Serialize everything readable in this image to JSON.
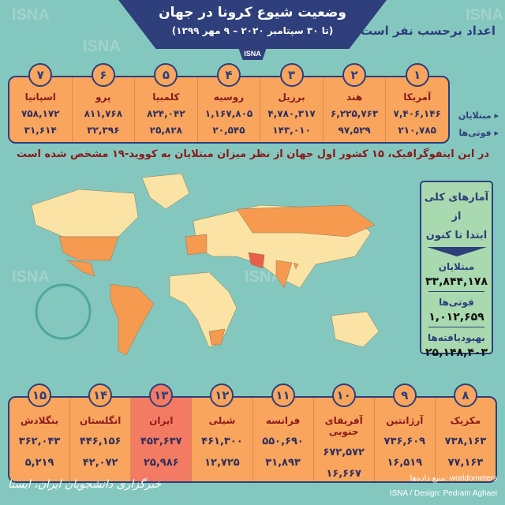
{
  "header": {
    "title": "وضعیت شیوع کرونا در جهان",
    "subtitle": "(تا ۳۰ سپتامبر ۲۰۲۰ – ۹ مهر ۱۳۹۹)",
    "tab": "ISNA",
    "units": "اعداد برحسب نفر است"
  },
  "watermark": "ISNA",
  "row_labels": {
    "cases": "مبتلایان",
    "deaths": "فوتی‌ها"
  },
  "top_countries": [
    {
      "rank": "۱",
      "name": "آمریکا",
      "cases": "۷,۴۰۶,۱۴۶",
      "deaths": "۲۱۰,۷۸۵"
    },
    {
      "rank": "۲",
      "name": "هند",
      "cases": "۶,۲۲۵,۷۶۳",
      "deaths": "۹۷,۵۲۹"
    },
    {
      "rank": "۳",
      "name": "برزیل",
      "cases": "۴,۷۸۰,۳۱۷",
      "deaths": "۱۴۳,۰۱۰"
    },
    {
      "rank": "۴",
      "name": "روسیه",
      "cases": "۱,۱۶۷,۸۰۵",
      "deaths": "۲۰,۵۴۵"
    },
    {
      "rank": "۵",
      "name": "کلمبیا",
      "cases": "۸۲۴,۰۴۲",
      "deaths": "۲۵,۸۲۸"
    },
    {
      "rank": "۶",
      "name": "پرو",
      "cases": "۸۱۱,۷۶۸",
      "deaths": "۳۲,۳۹۶"
    },
    {
      "rank": "۷",
      "name": "اسپانیا",
      "cases": "۷۵۸,۱۷۲",
      "deaths": "۳۱,۶۱۴"
    }
  ],
  "bottom_countries": [
    {
      "rank": "۸",
      "name": "مکزیک",
      "cases": "۷۳۸,۱۶۳",
      "deaths": "۷۷,۱۶۳"
    },
    {
      "rank": "۹",
      "name": "آرژانتین",
      "cases": "۷۳۶,۶۰۹",
      "deaths": "۱۶,۵۱۹"
    },
    {
      "rank": "۱۰",
      "name": "آفریقای جنوبی",
      "cases": "۶۷۲,۵۷۲",
      "deaths": "۱۶,۶۶۷"
    },
    {
      "rank": "۱۱",
      "name": "فرانسه",
      "cases": "۵۵۰,۶۹۰",
      "deaths": "۳۱,۸۹۳"
    },
    {
      "rank": "۱۲",
      "name": "شیلی",
      "cases": "۴۶۱,۳۰۰",
      "deaths": "۱۲,۷۲۵"
    },
    {
      "rank": "۱۳",
      "name": "ایران",
      "cases": "۴۵۳,۶۳۷",
      "deaths": "۲۵,۹۸۶",
      "highlight": true
    },
    {
      "rank": "۱۴",
      "name": "انگلستان",
      "cases": "۴۴۶,۱۵۶",
      "deaths": "۴۲,۰۷۲"
    },
    {
      "rank": "۱۵",
      "name": "بنگلادش",
      "cases": "۳۶۲,۰۴۳",
      "deaths": "۵,۲۱۹"
    }
  ],
  "headline": "در این اینفوگرافیک، ۱۵ کشور اول جهان از نظر میزان مبتلایان به کووید-۱۹ مشخص شده است",
  "stats": {
    "heading1": "آمارهای کلی از",
    "heading2": "ابتدا تا کنون",
    "cases_label": "مبتلایان",
    "cases": "۳۳,۸۴۴,۱۷۸",
    "deaths_label": "فوتی‌ها",
    "deaths": "۱,۰۱۲,۶۵۹",
    "recovered_label": "بهبودیافته‌ها",
    "recovered": "۲۵,۱۴۸,۴۰۳"
  },
  "footer": {
    "source": "منبع داده‌ها: worldometers",
    "design": "ISNA / Design: Pedram Aghaei",
    "logo": "خبرگزاری دانشجویان ایران، ایسنا"
  },
  "colors": {
    "background": "#84c7bf",
    "navy": "#2e3f7c",
    "orange": "#f9a55e",
    "highlight": "#f47b63",
    "land": "#fbe3a6",
    "marked_land": "#f59a4f"
  }
}
